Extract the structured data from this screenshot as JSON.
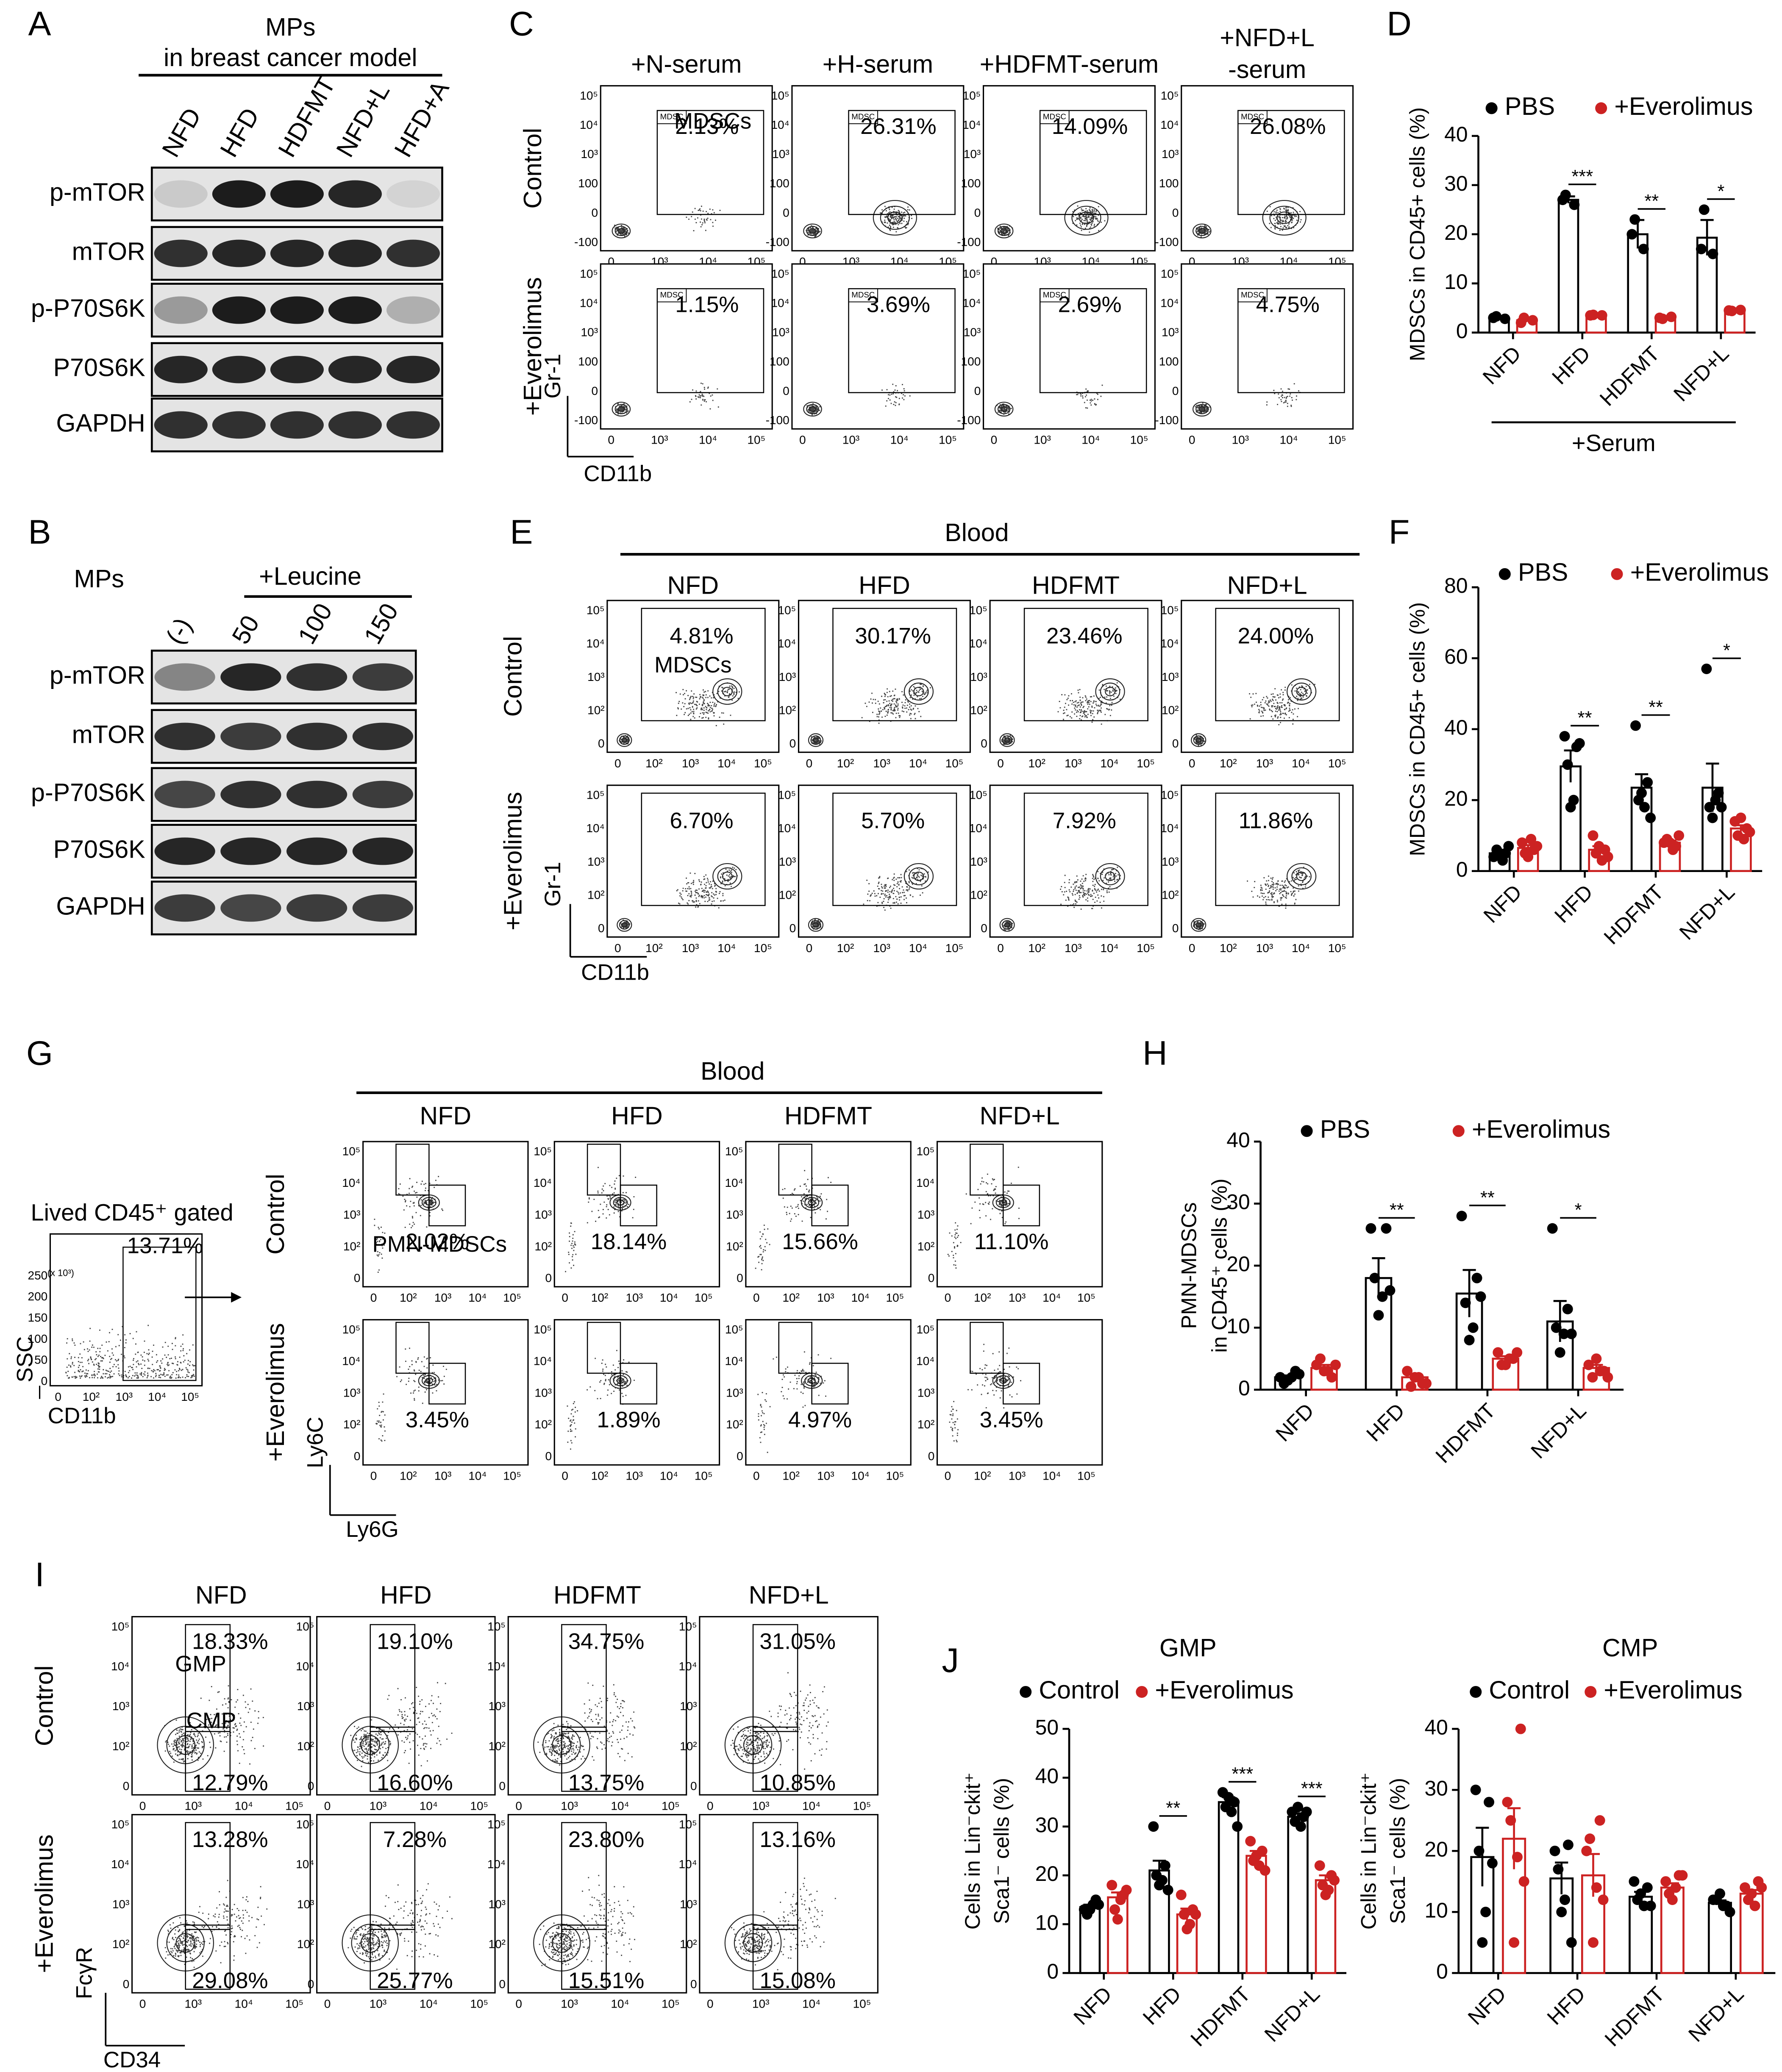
{
  "panel_labels": [
    "A",
    "B",
    "C",
    "D",
    "E",
    "F",
    "G",
    "H",
    "I",
    "J"
  ],
  "blots": {
    "A": {
      "header": [
        "MPs",
        "in breast cancer model"
      ],
      "lanes": [
        "NFD",
        "HFD",
        "HDFMT",
        "NFD+L",
        "HFD+A"
      ],
      "rows": [
        "p-mTOR",
        "mTOR",
        "p-P70S6K",
        "P70S6K",
        "GAPDH"
      ]
    },
    "B": {
      "header": "MPs",
      "treatment": "+Leucine",
      "lanes": [
        "(-)",
        "50",
        "100",
        "150"
      ],
      "rows": [
        "p-mTOR",
        "mTOR",
        "p-P70S6K",
        "P70S6K",
        "GAPDH"
      ]
    }
  },
  "flow": {
    "C": {
      "columns": [
        "+N-serum",
        "+H-serum",
        "+HDFMT-serum",
        [
          "+NFD+L",
          "-serum"
        ]
      ],
      "rows": [
        "Control",
        "+Everolimus"
      ],
      "gate_label": "MDSC",
      "subset": "MDSCs",
      "percents": [
        [
          "2.13%",
          "26.31%",
          "14.09%",
          "26.08%"
        ],
        [
          "1.15%",
          "3.69%",
          "2.69%",
          "4.75%"
        ]
      ],
      "yticks": [
        "10⁵",
        "10⁴",
        "10³",
        "100",
        "0",
        "-100"
      ],
      "xticks": [
        "0",
        "10³",
        "10⁴",
        "10⁵"
      ],
      "ylabel": "Gr-1",
      "xlabel": "CD11b"
    },
    "E": {
      "group": "Blood",
      "columns": [
        "NFD",
        "HFD",
        "HDFMT",
        "NFD+L"
      ],
      "rows": [
        "Control",
        "+Everolimus"
      ],
      "subset": "MDSCs",
      "percents": [
        [
          "4.81%",
          "30.17%",
          "23.46%",
          "24.00%"
        ],
        [
          "6.70%",
          "5.70%",
          "7.92%",
          "11.86%"
        ]
      ],
      "yticks": [
        "10⁵",
        "10⁴",
        "10³",
        "10²",
        "0"
      ],
      "xticks": [
        "0",
        "10²",
        "10³",
        "10⁴",
        "10⁵"
      ],
      "ylabel": "Gr-1",
      "xlabel": "CD11b"
    },
    "G": {
      "gating": {
        "title": "Lived CD45⁺ gated",
        "percent": "13.71%",
        "scale_note": "(x 10³)",
        "yticks": [
          "250",
          "200",
          "150",
          "100",
          "50",
          "0"
        ],
        "xticks": [
          "0",
          "10²",
          "10³",
          "10⁴",
          "10⁵"
        ],
        "ylabel": "SSC",
        "xlabel": "CD11b"
      },
      "group": "Blood",
      "columns": [
        "NFD",
        "HFD",
        "HDFMT",
        "NFD+L"
      ],
      "rows": [
        "Control",
        "+Everolimus"
      ],
      "subset": "PMN-MDSCs",
      "percents": [
        [
          "2.02%",
          "18.14%",
          "15.66%",
          "11.10%"
        ],
        [
          "3.45%",
          "1.89%",
          "4.97%",
          "3.45%"
        ]
      ],
      "yticks": [
        "10⁵",
        "10⁴",
        "10³",
        "10²",
        "0"
      ],
      "xticks": [
        "0",
        "10²",
        "10³",
        "10⁴",
        "10⁵"
      ],
      "ylabel": "Ly6C",
      "xlabel": "Ly6G"
    },
    "I": {
      "columns": [
        "NFD",
        "HFD",
        "HDFMT",
        "NFD+L"
      ],
      "rows": [
        "Control",
        "+Everolimus"
      ],
      "subsets": [
        "GMP",
        "CMP"
      ],
      "percents": [
        [
          [
            "18.33%",
            "12.79%"
          ],
          [
            "19.10%",
            "16.60%"
          ],
          [
            "34.75%",
            "13.75%"
          ],
          [
            "31.05%",
            "10.85%"
          ]
        ],
        [
          [
            "13.28%",
            "29.08%"
          ],
          [
            "7.28%",
            "25.77%"
          ],
          [
            "23.80%",
            "15.51%"
          ],
          [
            "13.16%",
            "15.08%"
          ]
        ]
      ],
      "yticks": [
        "10⁵",
        "10⁴",
        "10³",
        "10²",
        "0"
      ],
      "xticks": [
        "0",
        "10³",
        "10⁴",
        "10⁵"
      ],
      "ylabel": "FcγR",
      "xlabel": "CD34"
    }
  },
  "chart_data": [
    {
      "type": "bar",
      "ylabel": [
        "MDSCs in CD45+ cells (%)"
      ],
      "categories": [
        "NFD",
        "HFD",
        "HDFMT",
        "NFD+L"
      ],
      "group_label": "+Serum",
      "ylim": [
        0,
        40
      ],
      "yticks": [
        0,
        10,
        20,
        30,
        40
      ],
      "series": [
        {
          "name": "PBS",
          "color": "#000000",
          "values": [
            3,
            27,
            20,
            19.3
          ],
          "errors": [
            0.3,
            0.7,
            2.9,
            3.6
          ],
          "points": [
            [
              3,
              2.8,
              3.3
            ],
            [
              27,
              26,
              28
            ],
            [
              20,
              17,
              23
            ],
            [
              17,
              16,
              25
            ]
          ]
        },
        {
          "name": "+Everolimus",
          "color": "#cc2222",
          "values": [
            2.5,
            3.5,
            3,
            4.5
          ],
          "errors": [
            0.3,
            0.1,
            0.2,
            0.1
          ],
          "points": [
            [
              2,
              2.5,
              3
            ],
            [
              3.5,
              3.5,
              3.6
            ],
            [
              3,
              3.2,
              2.8
            ],
            [
              4.5,
              4.6,
              4.4
            ]
          ]
        }
      ],
      "significance": [
        null,
        "***",
        "**",
        "*"
      ]
    },
    {
      "type": "bar",
      "ylabel": [
        "MDSCs in CD45+ cells (%)"
      ],
      "categories": [
        "NFD",
        "HFD",
        "HDFMT",
        "NFD+L"
      ],
      "ylim": [
        0,
        80
      ],
      "yticks": [
        0,
        20,
        40,
        60,
        80
      ],
      "series": [
        {
          "name": "PBS",
          "color": "#000000",
          "values": [
            5,
            29.5,
            23.5,
            23.5
          ],
          "errors": [
            0.6,
            4.5,
            3.8,
            6.8
          ],
          "points": [
            [
              4,
              5,
              6,
              3,
              5,
              7
            ],
            [
              38,
              35,
              30,
              20,
              18,
              36
            ],
            [
              41,
              25,
              20,
              18,
              22,
              15
            ],
            [
              57,
              22,
              18,
              20,
              15,
              18
            ]
          ]
        },
        {
          "name": "+Everolimus",
          "color": "#cc2222",
          "values": [
            6.5,
            6,
            8,
            12
          ],
          "errors": [
            0.8,
            1,
            0.6,
            0.9
          ],
          "points": [
            [
              8,
              6,
              5,
              9,
              4,
              7
            ],
            [
              10,
              6,
              5,
              3,
              7,
              4
            ],
            [
              8,
              7,
              9,
              6,
              8,
              10
            ],
            [
              14,
              12,
              10,
              9,
              15,
              11
            ]
          ]
        }
      ],
      "significance": [
        null,
        "**",
        "**",
        "*"
      ]
    },
    {
      "type": "bar",
      "ylabel": [
        "PMN-MDSCs",
        "in CD45⁺ cells (%)"
      ],
      "categories": [
        "NFD",
        "HFD",
        "HDFMT",
        "NFD+L"
      ],
      "ylim": [
        0,
        40
      ],
      "yticks": [
        0,
        10,
        20,
        30,
        40
      ],
      "series": [
        {
          "name": "PBS",
          "color": "#000000",
          "values": [
            2,
            18,
            15.5,
            11
          ],
          "errors": [
            0.3,
            3.2,
            3.8,
            3.3
          ],
          "points": [
            [
              2,
              3,
              1,
              2,
              1.5,
              2.5
            ],
            [
              26,
              26,
              18,
              15,
              12,
              16
            ],
            [
              28,
              18,
              14,
              10,
              8,
              15
            ],
            [
              26,
              13,
              10,
              9,
              6,
              9
            ]
          ]
        },
        {
          "name": "+Everolimus",
          "color": "#cc2222",
          "values": [
            3.5,
            2,
            5,
            3.5
          ],
          "errors": [
            0.5,
            0.5,
            0.4,
            0.5
          ],
          "points": [
            [
              4,
              2,
              5,
              3,
              3,
              4
            ],
            [
              3,
              1,
              0.5,
              2,
              2,
              1
            ],
            [
              6,
              5,
              4,
              5,
              4,
              6
            ],
            [
              4,
              3,
              2,
              3,
              5,
              2
            ]
          ]
        }
      ],
      "significance": [
        null,
        "**",
        "**",
        "*"
      ]
    },
    {
      "type": "bar",
      "title": "GMP",
      "ylabel": [
        "Cells in Lin⁻ckit⁺",
        "Sca1⁻ cells (%)"
      ],
      "categories": [
        "NFD",
        "HFD",
        "HDFMT",
        "NFD+L"
      ],
      "ylim": [
        0,
        50
      ],
      "yticks": [
        0,
        10,
        20,
        30,
        40,
        50
      ],
      "series": [
        {
          "name": "Control",
          "color": "#000000",
          "values": [
            13.5,
            21,
            35,
            32
          ],
          "errors": [
            0.5,
            2,
            1,
            0.7
          ],
          "points": [
            [
              13,
              15,
              12,
              14,
              13,
              14
            ],
            [
              30,
              22,
              20,
              19,
              18,
              17
            ],
            [
              37,
              35,
              34,
              33,
              36,
              30
            ],
            [
              33,
              32,
              31,
              30,
              34,
              33
            ]
          ]
        },
        {
          "name": "+Everolimus",
          "color": "#cc2222",
          "values": [
            15.5,
            12,
            24,
            19
          ],
          "errors": [
            1,
            1.2,
            1,
            1
          ],
          "points": [
            [
              18,
              16,
              13,
              15,
              11,
              17
            ],
            [
              16,
              13,
              12,
              10,
              9,
              12
            ],
            [
              27,
              25,
              23,
              22,
              24,
              21
            ],
            [
              22,
              20,
              18,
              17,
              16,
              19
            ]
          ]
        }
      ],
      "significance": [
        null,
        "**",
        "***",
        "***"
      ]
    },
    {
      "type": "bar",
      "title": "CMP",
      "ylabel": [
        "Cells in Lin⁻ckit⁺",
        "Sca1⁻ cells (%)"
      ],
      "categories": [
        "NFD",
        "HFD",
        "HDFMT",
        "NFD+L"
      ],
      "ylim": [
        0,
        40
      ],
      "yticks": [
        0,
        10,
        20,
        30,
        40
      ],
      "series": [
        {
          "name": "Control",
          "color": "#000000",
          "values": [
            19,
            15.5,
            12.5,
            11.5
          ],
          "errors": [
            4.8,
            2.6,
            0.8,
            0.4
          ],
          "points": [
            [
              30,
              28,
              20,
              10,
              5,
              18
            ],
            [
              20,
              21,
              17,
              12,
              10,
              5
            ],
            [
              15,
              14,
              12,
              11,
              13,
              11
            ],
            [
              12,
              11,
              12,
              11,
              13,
              10
            ]
          ]
        },
        {
          "name": "+Everolimus",
          "color": "#cc2222",
          "values": [
            22,
            16,
            14,
            13
          ],
          "errors": [
            5,
            3.5,
            0.7,
            0.6
          ],
          "points": [
            [
              28,
              40,
              25,
              19,
              5,
              15
            ],
            [
              20,
              25,
              22,
              14,
              5,
              12
            ],
            [
              15,
              16,
              13,
              14,
              12,
              16
            ],
            [
              14,
              15,
              12,
              11,
              13,
              14
            ]
          ]
        }
      ],
      "significance": [
        null,
        null,
        null,
        null
      ]
    }
  ]
}
